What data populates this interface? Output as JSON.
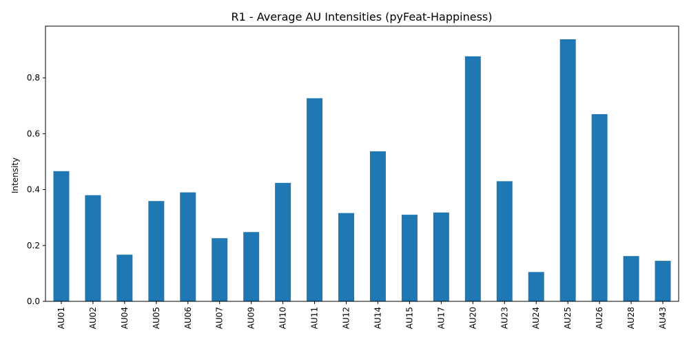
{
  "chart_data": {
    "type": "bar",
    "title": "R1 - Average AU Intensities (pyFeat-Happiness)",
    "xlabel": "",
    "ylabel": "Intensity",
    "categories": [
      "AU01",
      "AU02",
      "AU04",
      "AU05",
      "AU06",
      "AU07",
      "AU09",
      "AU10",
      "AU11",
      "AU12",
      "AU14",
      "AU15",
      "AU17",
      "AU20",
      "AU23",
      "AU24",
      "AU25",
      "AU26",
      "AU28",
      "AU43"
    ],
    "values": [
      0.466,
      0.38,
      0.167,
      0.359,
      0.39,
      0.226,
      0.248,
      0.424,
      0.727,
      0.316,
      0.537,
      0.31,
      0.318,
      0.877,
      0.43,
      0.105,
      0.938,
      0.67,
      0.162,
      0.145
    ],
    "ylim": [
      0,
      0.985
    ],
    "yticks": [
      "0.0",
      "0.2",
      "0.4",
      "0.6",
      "0.8"
    ],
    "ytick_values": [
      0,
      0.2,
      0.4,
      0.6,
      0.8
    ],
    "bar_color": "#1f77b4",
    "grid": false,
    "legend": "none"
  }
}
